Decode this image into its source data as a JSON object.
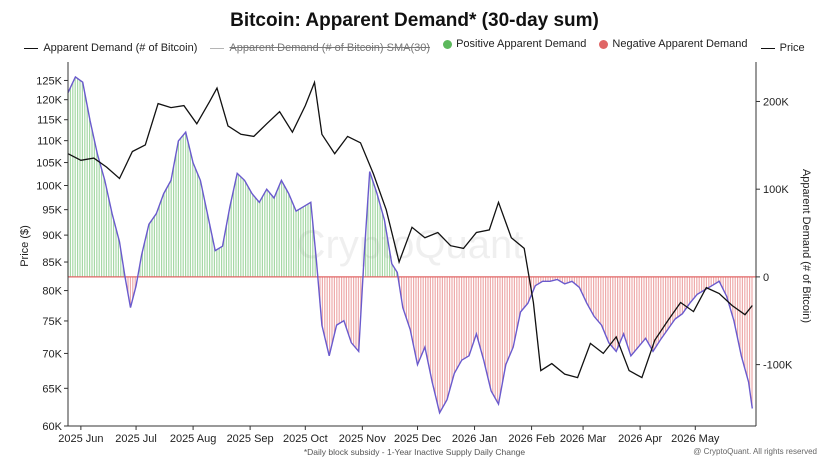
{
  "chart_data": {
    "type": "line",
    "title": "Bitcoin: Apparent Demand* (30-day sum)",
    "legend": [
      {
        "name": "Apparent Demand (# of Bitcoin)",
        "swatch": "line",
        "color": "#111111"
      },
      {
        "name": "Apparent Demand (# of Bitcoin) SMA(30)",
        "swatch": "line",
        "color": "#b5b5b5",
        "struck": true
      },
      {
        "name": "Positive Apparent Demand",
        "swatch": "dot",
        "color": "#5cb85c"
      },
      {
        "name": "Negative Apparent Demand",
        "swatch": "dot",
        "color": "#e06666"
      },
      {
        "name": "Price",
        "swatch": "line",
        "color": "#111111"
      }
    ],
    "legend_position": "top",
    "ylabel_left": "Price ($)",
    "ylabel_right": "Apparent Demand (# of Bitcoin)",
    "left_ticks": [
      "125K",
      "120K",
      "115K",
      "110K",
      "105K",
      "100K",
      "95K",
      "90K",
      "85K",
      "80K",
      "75K",
      "70K",
      "65K",
      "60K"
    ],
    "right_ticks": [
      "200K",
      "100K",
      "0",
      "-100K"
    ],
    "x_ticks": [
      "2025 Jun",
      "2025 Jul",
      "2025 Aug",
      "2025 Sep",
      "2025 Oct",
      "2025 Nov",
      "2025 Dec",
      "2026 Jan",
      "2026 Feb",
      "2026 Mar",
      "2026 Apr",
      "2026 May"
    ],
    "price_scale": "log",
    "ylim_left": [
      60000,
      130000
    ],
    "ylim_right": [
      -170000,
      245000
    ],
    "xlim": [
      "2025-05-25",
      "2026-06-03"
    ],
    "grid": false,
    "series": [
      {
        "name": "Price",
        "color": "#111111",
        "axis": "left",
        "points": [
          [
            "2025-05-25",
            107000
          ],
          [
            "2025-06-01",
            105500
          ],
          [
            "2025-06-08",
            106000
          ],
          [
            "2025-06-15",
            104000
          ],
          [
            "2025-06-22",
            101500
          ],
          [
            "2025-06-29",
            107500
          ],
          [
            "2025-07-06",
            109000
          ],
          [
            "2025-07-13",
            119000
          ],
          [
            "2025-07-20",
            118000
          ],
          [
            "2025-07-27",
            118500
          ],
          [
            "2025-08-03",
            114000
          ],
          [
            "2025-08-10",
            119500
          ],
          [
            "2025-08-14",
            123000
          ],
          [
            "2025-08-20",
            113500
          ],
          [
            "2025-08-27",
            111500
          ],
          [
            "2025-09-03",
            111000
          ],
          [
            "2025-09-10",
            114000
          ],
          [
            "2025-09-17",
            117000
          ],
          [
            "2025-09-24",
            112000
          ],
          [
            "2025-10-01",
            118500
          ],
          [
            "2025-10-06",
            124500
          ],
          [
            "2025-10-10",
            111500
          ],
          [
            "2025-10-17",
            107000
          ],
          [
            "2025-10-24",
            111000
          ],
          [
            "2025-10-31",
            109500
          ],
          [
            "2025-11-07",
            102500
          ],
          [
            "2025-11-14",
            95000
          ],
          [
            "2025-11-21",
            85000
          ],
          [
            "2025-11-28",
            91500
          ],
          [
            "2025-12-05",
            89500
          ],
          [
            "2025-12-12",
            90500
          ],
          [
            "2025-12-19",
            88000
          ],
          [
            "2025-12-26",
            87500
          ],
          [
            "2026-01-02",
            90500
          ],
          [
            "2026-01-09",
            91000
          ],
          [
            "2026-01-14",
            96500
          ],
          [
            "2026-01-21",
            89500
          ],
          [
            "2026-01-28",
            87500
          ],
          [
            "2026-02-02",
            78000
          ],
          [
            "2026-02-06",
            67500
          ],
          [
            "2026-02-12",
            68500
          ],
          [
            "2026-02-19",
            67000
          ],
          [
            "2026-02-26",
            66500
          ],
          [
            "2026-03-05",
            71500
          ],
          [
            "2026-03-12",
            70000
          ],
          [
            "2026-03-19",
            72500
          ],
          [
            "2026-03-26",
            67500
          ],
          [
            "2026-04-02",
            66500
          ],
          [
            "2026-04-09",
            72000
          ],
          [
            "2026-04-16",
            75000
          ],
          [
            "2026-04-23",
            78000
          ],
          [
            "2026-04-30",
            76500
          ],
          [
            "2026-05-07",
            80500
          ],
          [
            "2026-05-14",
            79500
          ],
          [
            "2026-05-21",
            77500
          ],
          [
            "2026-05-28",
            76000
          ],
          [
            "2026-06-01",
            77500
          ]
        ]
      },
      {
        "name": "Apparent Demand (# of Bitcoin)",
        "color": "#6a5acd",
        "axis": "right",
        "points": [
          [
            "2025-05-25",
            210000
          ],
          [
            "2025-05-29",
            228000
          ],
          [
            "2025-06-02",
            222000
          ],
          [
            "2025-06-06",
            178000
          ],
          [
            "2025-06-10",
            140000
          ],
          [
            "2025-06-14",
            110000
          ],
          [
            "2025-06-18",
            72000
          ],
          [
            "2025-06-22",
            40000
          ],
          [
            "2025-06-25",
            0
          ],
          [
            "2025-06-28",
            -35000
          ],
          [
            "2025-07-01",
            -10000
          ],
          [
            "2025-07-04",
            25000
          ],
          [
            "2025-07-08",
            60000
          ],
          [
            "2025-07-12",
            72000
          ],
          [
            "2025-07-16",
            95000
          ],
          [
            "2025-07-20",
            110000
          ],
          [
            "2025-07-24",
            155000
          ],
          [
            "2025-07-28",
            165000
          ],
          [
            "2025-08-01",
            130000
          ],
          [
            "2025-08-05",
            110000
          ],
          [
            "2025-08-09",
            70000
          ],
          [
            "2025-08-13",
            30000
          ],
          [
            "2025-08-17",
            35000
          ],
          [
            "2025-08-21",
            80000
          ],
          [
            "2025-08-25",
            118000
          ],
          [
            "2025-08-29",
            110000
          ],
          [
            "2025-09-02",
            95000
          ],
          [
            "2025-09-06",
            85000
          ],
          [
            "2025-09-10",
            100000
          ],
          [
            "2025-09-14",
            90000
          ],
          [
            "2025-09-18",
            110000
          ],
          [
            "2025-09-22",
            95000
          ],
          [
            "2025-09-26",
            75000
          ],
          [
            "2025-09-30",
            80000
          ],
          [
            "2025-10-04",
            85000
          ],
          [
            "2025-10-07",
            20000
          ],
          [
            "2025-10-10",
            -55000
          ],
          [
            "2025-10-14",
            -90000
          ],
          [
            "2025-10-18",
            -55000
          ],
          [
            "2025-10-22",
            -50000
          ],
          [
            "2025-10-26",
            -75000
          ],
          [
            "2025-10-30",
            -85000
          ],
          [
            "2025-11-02",
            25000
          ],
          [
            "2025-11-05",
            120000
          ],
          [
            "2025-11-09",
            95000
          ],
          [
            "2025-11-13",
            65000
          ],
          [
            "2025-11-17",
            15000
          ],
          [
            "2025-11-20",
            5000
          ],
          [
            "2025-11-23",
            -35000
          ],
          [
            "2025-11-27",
            -60000
          ],
          [
            "2025-12-01",
            -100000
          ],
          [
            "2025-12-05",
            -80000
          ],
          [
            "2025-12-09",
            -120000
          ],
          [
            "2025-12-13",
            -155000
          ],
          [
            "2025-12-17",
            -140000
          ],
          [
            "2025-12-21",
            -110000
          ],
          [
            "2025-12-25",
            -95000
          ],
          [
            "2025-12-29",
            -90000
          ],
          [
            "2026-01-02",
            -65000
          ],
          [
            "2026-01-06",
            -95000
          ],
          [
            "2026-01-10",
            -130000
          ],
          [
            "2026-01-14",
            -145000
          ],
          [
            "2026-01-18",
            -100000
          ],
          [
            "2026-01-22",
            -80000
          ],
          [
            "2026-01-26",
            -40000
          ],
          [
            "2026-01-30",
            -30000
          ],
          [
            "2026-02-03",
            -10000
          ],
          [
            "2026-02-07",
            -5000
          ],
          [
            "2026-02-11",
            -5000
          ],
          [
            "2026-02-15",
            -3000
          ],
          [
            "2026-02-19",
            -8000
          ],
          [
            "2026-02-23",
            -5000
          ],
          [
            "2026-02-27",
            -12000
          ],
          [
            "2026-03-03",
            -30000
          ],
          [
            "2026-03-07",
            -45000
          ],
          [
            "2026-03-11",
            -55000
          ],
          [
            "2026-03-15",
            -75000
          ],
          [
            "2026-03-19",
            -85000
          ],
          [
            "2026-03-23",
            -65000
          ],
          [
            "2026-03-27",
            -90000
          ],
          [
            "2026-03-31",
            -80000
          ],
          [
            "2026-04-04",
            -70000
          ],
          [
            "2026-04-08",
            -85000
          ],
          [
            "2026-04-12",
            -72000
          ],
          [
            "2026-04-16",
            -60000
          ],
          [
            "2026-04-20",
            -48000
          ],
          [
            "2026-04-24",
            -42000
          ],
          [
            "2026-04-28",
            -30000
          ],
          [
            "2026-05-02",
            -20000
          ],
          [
            "2026-05-06",
            -15000
          ],
          [
            "2026-05-10",
            -10000
          ],
          [
            "2026-05-14",
            -5000
          ],
          [
            "2026-05-18",
            -22000
          ],
          [
            "2026-05-22",
            -50000
          ],
          [
            "2026-05-26",
            -90000
          ],
          [
            "2026-05-30",
            -120000
          ],
          [
            "2026-06-01",
            -150000
          ]
        ]
      }
    ],
    "fill": {
      "positive_color": "#5cb85c",
      "negative_color": "#e06666"
    },
    "watermark": "CryptoQuant",
    "footnote": "*Daily block subsidy - 1-Year Inactive Supply Daily Change",
    "credit": "@ CryptoQuant. All rights reserved"
  }
}
